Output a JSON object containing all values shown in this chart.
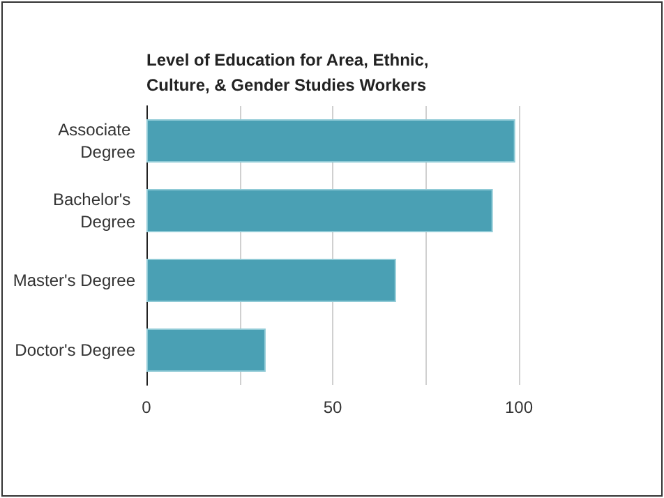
{
  "chart_data": {
    "type": "bar",
    "orientation": "horizontal",
    "title": "Level of Education for Area, Ethnic, Culture, & Gender Studies Workers",
    "categories": [
      "Associate Degree",
      "Bachelor's Degree",
      "Master's Degree",
      "Doctor's Degree"
    ],
    "values": [
      99,
      93,
      67,
      32
    ],
    "color": "#4aa0b4",
    "xlim": [
      0,
      100
    ],
    "xticks": [
      0,
      {
        "value": 25,
        "label": null
      },
      50,
      {
        "value": 75,
        "label": null
      },
      100
    ],
    "grid": "x"
  }
}
